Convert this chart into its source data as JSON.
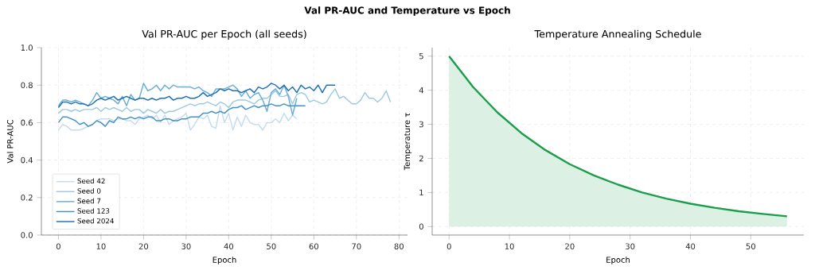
{
  "chart_data": [
    {
      "type": "line",
      "title": "Val PR-AUC per Epoch (all seeds)",
      "xlabel": "Epoch",
      "ylabel": "Val PR-AUC",
      "annotations": [
        "Val PR-AUC and Temperature vs Epoch"
      ],
      "x": [
        0,
        1,
        2,
        3,
        4,
        5,
        6,
        7,
        8,
        9,
        10,
        11,
        12,
        13,
        14,
        15,
        16,
        17,
        18,
        19,
        20,
        21,
        22,
        23,
        24,
        25,
        26,
        27,
        28,
        29,
        30,
        31,
        32,
        33,
        34,
        35,
        36,
        37,
        38,
        39,
        40,
        41,
        42,
        43,
        44,
        45,
        46,
        47,
        48,
        49,
        50,
        51,
        52,
        53,
        54,
        55,
        56,
        57,
        58,
        59,
        60,
        61,
        62,
        63,
        64,
        65,
        66,
        67,
        68,
        69,
        70,
        71,
        72,
        73,
        74,
        75,
        76,
        77,
        78
      ],
      "xlim": [
        -4,
        82
      ],
      "xticks": [
        0,
        10,
        20,
        30,
        40,
        50,
        60,
        70,
        80
      ],
      "ylim": [
        0,
        1
      ],
      "yticks": [
        {
          "value": 0,
          "label": "0.0"
        },
        0.2,
        0.4,
        0.6,
        0.8,
        {
          "value": 1,
          "label": "1.0"
        }
      ],
      "grid": true,
      "legend": "bottom left",
      "series": [
        {
          "name": "Seed 42",
          "color": "#c6dbef",
          "values": [
            0.56,
            0.59,
            0.58,
            0.56,
            0.56,
            0.56,
            0.57,
            0.58,
            0.59,
            0.61,
            0.62,
            0.62,
            0.62,
            0.61,
            0.62,
            0.62,
            0.61,
            0.61,
            0.59,
            0.62,
            0.63,
            0.64,
            0.62,
            0.64,
            0.6,
            0.64,
            0.59,
            0.61,
            0.62,
            0.63,
            0.65,
            0.56,
            0.59,
            0.63,
            0.62,
            0.64,
            0.58,
            0.57,
            0.69,
            0.6,
            0.65,
            0.56,
            0.63,
            0.58,
            0.64,
            0.6,
            0.59,
            0.59,
            0.56,
            0.6,
            0.6,
            0.62,
            0.6,
            0.65,
            0.61,
            0.64,
            0.62,
            null,
            null,
            null,
            null,
            null,
            null,
            null,
            null,
            null,
            null,
            null,
            null,
            null,
            null,
            null,
            null,
            null,
            null,
            null,
            null,
            null,
            null
          ]
        },
        {
          "name": "Seed 0",
          "color": "#9ecae1",
          "values": [
            0.65,
            0.67,
            0.67,
            0.66,
            0.67,
            0.66,
            0.67,
            0.67,
            0.67,
            0.68,
            0.66,
            0.68,
            0.67,
            0.68,
            0.67,
            0.66,
            0.68,
            0.66,
            0.67,
            0.67,
            0.65,
            0.67,
            0.66,
            0.65,
            0.67,
            0.65,
            0.66,
            0.66,
            0.67,
            0.68,
            0.69,
            0.7,
            0.69,
            0.7,
            0.7,
            0.71,
            0.7,
            0.69,
            0.71,
            0.7,
            0.68,
            0.71,
            0.72,
            0.72,
            0.72,
            0.71,
            0.7,
            0.72,
            0.73,
            0.73,
            0.75,
            0.77,
            0.74,
            0.74,
            0.75,
            0.7,
            0.75,
            0.76,
            0.75,
            0.71,
            0.72,
            0.71,
            0.7,
            0.71,
            0.75,
            0.78,
            0.73,
            0.74,
            0.72,
            0.7,
            0.7,
            0.72,
            0.76,
            0.73,
            0.73,
            0.71,
            0.73,
            0.77,
            0.71
          ]
        },
        {
          "name": "Seed 7",
          "color": "#6baed6",
          "values": [
            0.69,
            0.72,
            0.72,
            0.71,
            0.72,
            0.71,
            0.7,
            0.69,
            0.72,
            0.76,
            0.73,
            0.74,
            0.73,
            0.72,
            0.7,
            0.74,
            0.69,
            0.75,
            0.72,
            0.73,
            0.81,
            0.77,
            0.78,
            0.8,
            0.77,
            0.8,
            0.78,
            0.8,
            0.79,
            0.79,
            0.79,
            0.79,
            0.78,
            0.79,
            0.77,
            0.76,
            0.74,
            0.78,
            0.78,
            0.78,
            0.79,
            0.8,
            0.78,
            0.74,
            0.77,
            0.73,
            0.75,
            0.76,
            0.72,
            0.66,
            0.76,
            0.78,
            0.75,
            0.8,
            0.74,
            0.64,
            0.73,
            null,
            null,
            null,
            null,
            null,
            null,
            null,
            null,
            null,
            null,
            null,
            null,
            null,
            null,
            null,
            null,
            null,
            null,
            null,
            null,
            null,
            null
          ]
        },
        {
          "name": "Seed 123",
          "color": "#4292c6",
          "values": [
            0.6,
            0.63,
            0.63,
            0.62,
            0.61,
            0.59,
            0.6,
            0.58,
            0.59,
            0.61,
            0.6,
            0.58,
            0.61,
            0.6,
            0.63,
            0.62,
            0.62,
            0.63,
            0.62,
            0.63,
            0.62,
            0.63,
            0.63,
            0.61,
            0.61,
            0.62,
            0.62,
            0.61,
            0.61,
            0.62,
            0.62,
            0.63,
            0.63,
            0.63,
            0.65,
            0.65,
            0.66,
            0.65,
            0.66,
            0.65,
            0.67,
            0.68,
            0.68,
            0.69,
            0.67,
            0.68,
            0.69,
            0.68,
            0.69,
            0.69,
            0.7,
            0.69,
            0.69,
            0.7,
            0.69,
            0.69,
            0.69,
            0.69,
            0.69,
            null,
            null,
            null,
            null,
            null,
            null,
            null,
            null,
            null,
            null,
            null,
            null,
            null,
            null,
            null,
            null,
            null,
            null,
            null,
            null
          ]
        },
        {
          "name": "Seed 2024",
          "color": "#2171b5",
          "values": [
            0.68,
            0.71,
            0.71,
            0.7,
            0.71,
            0.7,
            0.7,
            0.69,
            0.7,
            0.72,
            0.73,
            0.72,
            0.73,
            0.74,
            0.72,
            0.73,
            0.74,
            0.73,
            0.72,
            0.73,
            0.73,
            0.72,
            0.73,
            0.72,
            0.73,
            0.73,
            0.74,
            0.72,
            0.73,
            0.73,
            0.74,
            0.73,
            0.73,
            0.74,
            0.76,
            0.74,
            0.75,
            0.76,
            0.78,
            0.77,
            0.78,
            0.77,
            0.77,
            0.76,
            0.77,
            0.78,
            0.76,
            0.79,
            0.78,
            0.79,
            0.81,
            0.8,
            0.78,
            0.8,
            0.77,
            0.79,
            0.76,
            0.8,
            0.78,
            0.79,
            0.77,
            0.8,
            0.76,
            0.8,
            0.8,
            0.8,
            null,
            null,
            null,
            null,
            null,
            null,
            null,
            null,
            null,
            null,
            null,
            null,
            null
          ]
        }
      ]
    },
    {
      "type": "area",
      "title": "Temperature Annealing Schedule",
      "xlabel": "Epoch",
      "ylabel": "Temperature τ",
      "x": [
        0,
        4,
        8,
        12,
        16,
        20,
        24,
        28,
        32,
        36,
        40,
        44,
        48,
        52,
        56
      ],
      "xlim": [
        -2.8,
        58.8
      ],
      "xticks": [
        0,
        10,
        20,
        30,
        40,
        50
      ],
      "ylim": [
        -0.25,
        5.25
      ],
      "yticks": [
        0,
        1,
        2,
        3,
        4,
        5
      ],
      "grid": true,
      "series": [
        {
          "color": "#1a9e4a",
          "values": [
            5.0,
            4.09,
            3.35,
            2.74,
            2.24,
            1.83,
            1.5,
            1.23,
            1.0,
            0.82,
            0.67,
            0.55,
            0.45,
            0.37,
            0.3
          ]
        }
      ]
    }
  ]
}
